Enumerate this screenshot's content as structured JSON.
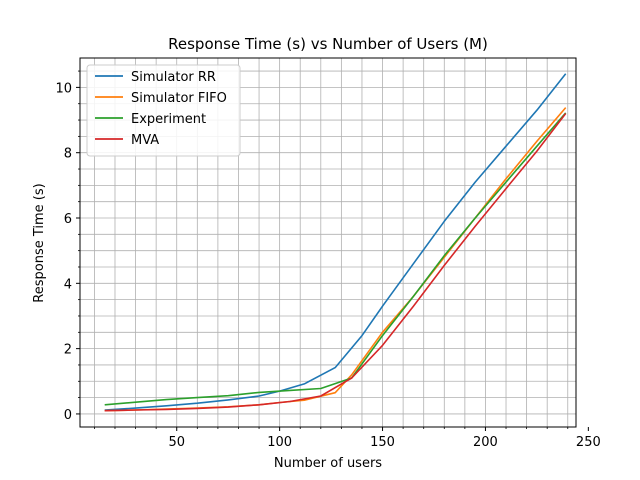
{
  "chart_data": {
    "type": "line",
    "title": "Response Time (s) vs Number of Users (M)",
    "xlabel": "Number of users",
    "ylabel": "Response Time (s)",
    "xlim": [
      3,
      244
    ],
    "ylim": [
      -0.4,
      10.9
    ],
    "x_ticks": [
      50,
      100,
      150,
      200,
      250
    ],
    "y_ticks": [
      0,
      2,
      4,
      6,
      8,
      10
    ],
    "x_minor_step": 10,
    "y_minor_step": 0.5,
    "grid": "major and minor",
    "legend_position": "upper-left",
    "series": [
      {
        "name": "Simulator RR",
        "color": "#1f77b4",
        "x": [
          15,
          30,
          45,
          60,
          75,
          90,
          100,
          112,
          127,
          140,
          150,
          165,
          180,
          195,
          210,
          225,
          239
        ],
        "y": [
          0.12,
          0.18,
          0.25,
          0.33,
          0.43,
          0.55,
          0.7,
          0.92,
          1.42,
          2.4,
          3.3,
          4.6,
          5.9,
          7.1,
          8.2,
          9.3,
          10.42
        ]
      },
      {
        "name": "Simulator FIFO",
        "color": "#ff7f0e",
        "x": [
          15,
          30,
          45,
          60,
          75,
          90,
          100,
          112,
          127,
          135,
          150,
          165,
          180,
          195,
          210,
          225,
          239
        ],
        "y": [
          0.1,
          0.12,
          0.15,
          0.18,
          0.22,
          0.28,
          0.35,
          0.42,
          0.65,
          1.2,
          2.5,
          3.6,
          4.8,
          6.0,
          7.2,
          8.35,
          9.38
        ]
      },
      {
        "name": "Experiment",
        "color": "#2ca02c",
        "x": [
          15,
          30,
          45,
          60,
          75,
          90,
          105,
          120,
          135,
          150,
          165,
          180,
          195,
          210,
          225,
          239
        ],
        "y": [
          0.28,
          0.36,
          0.44,
          0.5,
          0.56,
          0.66,
          0.72,
          0.78,
          1.1,
          2.4,
          3.6,
          4.85,
          6.0,
          7.1,
          8.2,
          9.22
        ]
      },
      {
        "name": "MVA",
        "color": "#d62728",
        "x": [
          15,
          30,
          45,
          60,
          75,
          90,
          105,
          120,
          135,
          150,
          165,
          180,
          195,
          210,
          225,
          239
        ],
        "y": [
          0.1,
          0.12,
          0.14,
          0.17,
          0.21,
          0.28,
          0.38,
          0.55,
          1.1,
          2.1,
          3.3,
          4.55,
          5.75,
          6.9,
          8.05,
          9.2
        ]
      }
    ]
  }
}
